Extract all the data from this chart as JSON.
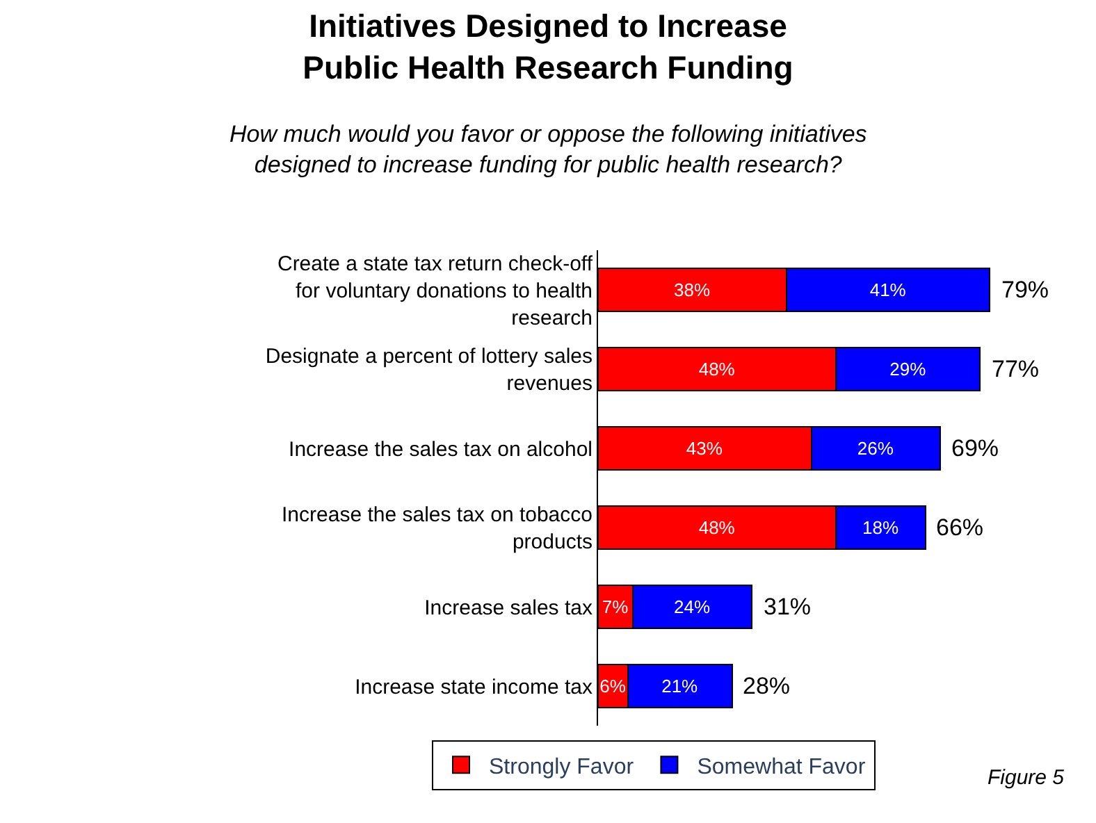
{
  "chart_data": {
    "type": "bar",
    "orientation": "horizontal",
    "stacked": true,
    "title": "Initiatives Designed to Increase Public Health Research Funding",
    "subtitle": "How much would you favor or oppose the following initiatives designed to increase funding for public health research?",
    "categories": [
      "Create a state tax return check-off for voluntary donations to health research",
      "Designate a percent of lottery sales revenues",
      "Increase the sales tax on alcohol",
      "Increase the sales tax on tobacco products",
      "Increase sales tax",
      "Increase state income tax"
    ],
    "series": [
      {
        "name": "Strongly Favor",
        "color": "#ff0000",
        "values": [
          38,
          48,
          43,
          48,
          7,
          6
        ],
        "value_labels": [
          "38%",
          "48%",
          "43%",
          "48%",
          "7%",
          "6%"
        ]
      },
      {
        "name": "Somewhat Favor",
        "color": "#0000ff",
        "values": [
          41,
          29,
          26,
          18,
          24,
          21
        ],
        "value_labels": [
          "41%",
          "29%",
          "26%",
          "18%",
          "24%",
          "21%"
        ]
      }
    ],
    "totals": [
      "79%",
      "77%",
      "69%",
      "66%",
      "31%",
      "28%"
    ],
    "legend": "bottom",
    "annotations": [
      "Figure 5"
    ]
  }
}
